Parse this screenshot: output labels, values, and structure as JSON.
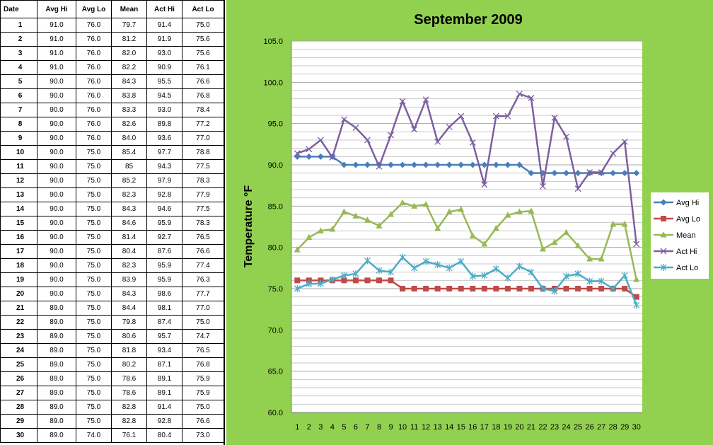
{
  "table": {
    "headers": [
      "Date",
      "Avg Hi",
      "Avg Lo",
      "Mean",
      "Act Hi",
      "Act Lo"
    ],
    "rows": [
      [
        "1",
        "91.0",
        "76.0",
        "79.7",
        "91.4",
        "75.0"
      ],
      [
        "2",
        "91.0",
        "76.0",
        "81.2",
        "91.9",
        "75.6"
      ],
      [
        "3",
        "91.0",
        "76.0",
        "82.0",
        "93.0",
        "75.6"
      ],
      [
        "4",
        "91.0",
        "76.0",
        "82.2",
        "90.9",
        "76.1"
      ],
      [
        "5",
        "90.0",
        "76.0",
        "84.3",
        "95.5",
        "76.6"
      ],
      [
        "6",
        "90.0",
        "76.0",
        "83.8",
        "94.5",
        "76.8"
      ],
      [
        "7",
        "90.0",
        "76.0",
        "83.3",
        "93.0",
        "78.4"
      ],
      [
        "8",
        "90.0",
        "76.0",
        "82.6",
        "89.8",
        "77.2"
      ],
      [
        "9",
        "90.0",
        "76.0",
        "84.0",
        "93.6",
        "77.0"
      ],
      [
        "10",
        "90.0",
        "75.0",
        "85.4",
        "97.7",
        "78.8"
      ],
      [
        "11",
        "90.0",
        "75.0",
        "85",
        "94.3",
        "77.5"
      ],
      [
        "12",
        "90.0",
        "75.0",
        "85.2",
        "97.9",
        "78.3"
      ],
      [
        "13",
        "90.0",
        "75.0",
        "82.3",
        "92.8",
        "77.9"
      ],
      [
        "14",
        "90.0",
        "75.0",
        "84.3",
        "94.6",
        "77.5"
      ],
      [
        "15",
        "90.0",
        "75.0",
        "84.6",
        "95.9",
        "78.3"
      ],
      [
        "16",
        "90.0",
        "75.0",
        "81.4",
        "92.7",
        "76.5"
      ],
      [
        "17",
        "90.0",
        "75.0",
        "80.4",
        "87.6",
        "76.6"
      ],
      [
        "18",
        "90.0",
        "75.0",
        "82.3",
        "95.9",
        "77.4"
      ],
      [
        "19",
        "90.0",
        "75.0",
        "83.9",
        "95.9",
        "76.3"
      ],
      [
        "20",
        "90.0",
        "75.0",
        "84.3",
        "98.6",
        "77.7"
      ],
      [
        "21",
        "89.0",
        "75.0",
        "84.4",
        "98.1",
        "77.0"
      ],
      [
        "22",
        "89.0",
        "75.0",
        "79.8",
        "87.4",
        "75.0"
      ],
      [
        "23",
        "89.0",
        "75.0",
        "80.6",
        "95.7",
        "74.7"
      ],
      [
        "24",
        "89.0",
        "75.0",
        "81.8",
        "93.4",
        "76.5"
      ],
      [
        "25",
        "89.0",
        "75.0",
        "80.2",
        "87.1",
        "76.8"
      ],
      [
        "26",
        "89.0",
        "75.0",
        "78.6",
        "89.1",
        "75.9"
      ],
      [
        "27",
        "89.0",
        "75.0",
        "78.6",
        "89.1",
        "75.9"
      ],
      [
        "28",
        "89.0",
        "75.0",
        "82.8",
        "91.4",
        "75.0"
      ],
      [
        "29",
        "89.0",
        "75.0",
        "82.8",
        "92.8",
        "76.6"
      ],
      [
        "30",
        "89.0",
        "74.0",
        "76.1",
        "80.4",
        "73.0"
      ]
    ]
  },
  "chart_data": {
    "type": "line",
    "title": "September 2009",
    "xlabel": "",
    "ylabel": "Temperature °F",
    "x": [
      1,
      2,
      3,
      4,
      5,
      6,
      7,
      8,
      9,
      10,
      11,
      12,
      13,
      14,
      15,
      16,
      17,
      18,
      19,
      20,
      21,
      22,
      23,
      24,
      25,
      26,
      27,
      28,
      29,
      30
    ],
    "ylim": [
      60,
      105
    ],
    "yticks": [
      "60.0",
      "65.0",
      "70.0",
      "75.0",
      "80.0",
      "85.0",
      "90.0",
      "95.0",
      "100.0",
      "105.0"
    ],
    "grid": true,
    "legend_position": "right",
    "series": [
      {
        "name": "Avg Hi",
        "color": "#4a7ebb",
        "marker": "diamond",
        "values": [
          91,
          91,
          91,
          91,
          90,
          90,
          90,
          90,
          90,
          90,
          90,
          90,
          90,
          90,
          90,
          90,
          90,
          90,
          90,
          90,
          89,
          89,
          89,
          89,
          89,
          89,
          89,
          89,
          89,
          89
        ]
      },
      {
        "name": "Avg Lo",
        "color": "#be4b48",
        "marker": "square",
        "values": [
          76,
          76,
          76,
          76,
          76,
          76,
          76,
          76,
          76,
          75,
          75,
          75,
          75,
          75,
          75,
          75,
          75,
          75,
          75,
          75,
          75,
          75,
          75,
          75,
          75,
          75,
          75,
          75,
          75,
          74
        ]
      },
      {
        "name": "Mean",
        "color": "#98b954",
        "marker": "triangle",
        "values": [
          79.7,
          81.2,
          82.0,
          82.2,
          84.3,
          83.8,
          83.3,
          82.6,
          84.0,
          85.4,
          85,
          85.2,
          82.3,
          84.3,
          84.6,
          81.4,
          80.4,
          82.3,
          83.9,
          84.3,
          84.4,
          79.8,
          80.6,
          81.8,
          80.2,
          78.6,
          78.6,
          82.8,
          82.8,
          76.1
        ]
      },
      {
        "name": "Act Hi",
        "color": "#7d5fa0",
        "marker": "x",
        "values": [
          91.4,
          91.9,
          93.0,
          90.9,
          95.5,
          94.5,
          93.0,
          89.8,
          93.6,
          97.7,
          94.3,
          97.9,
          92.8,
          94.6,
          95.9,
          92.7,
          87.6,
          95.9,
          95.9,
          98.6,
          98.1,
          87.4,
          95.7,
          93.4,
          87.1,
          89.1,
          89.1,
          91.4,
          92.8,
          80.4
        ]
      },
      {
        "name": "Act Lo",
        "color": "#4bacc6",
        "marker": "star",
        "values": [
          75.0,
          75.6,
          75.6,
          76.1,
          76.6,
          76.8,
          78.4,
          77.2,
          77.0,
          78.8,
          77.5,
          78.3,
          77.9,
          77.5,
          78.3,
          76.5,
          76.6,
          77.4,
          76.3,
          77.7,
          77.0,
          75.0,
          74.7,
          76.5,
          76.8,
          75.9,
          75.9,
          75.0,
          76.6,
          73.0
        ]
      }
    ]
  }
}
